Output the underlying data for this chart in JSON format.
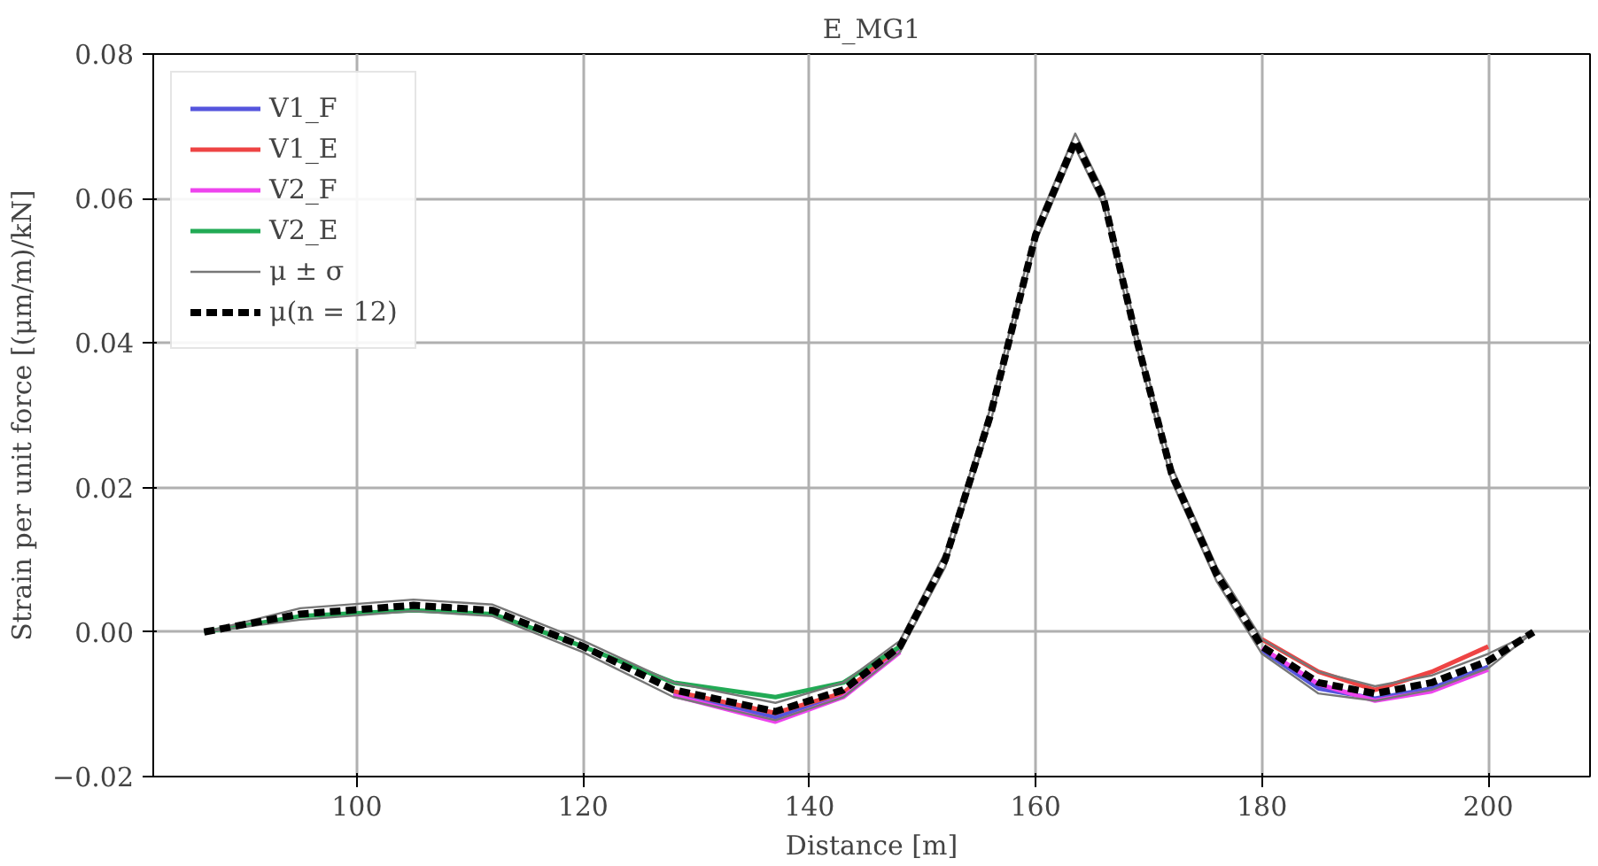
{
  "chart_data": {
    "type": "line",
    "title": "E_MG1",
    "xlabel": "Distance [m]",
    "ylabel": "Strain per unit force [(μm/m)/kN]",
    "x": [
      86.5,
      95,
      105,
      112,
      120,
      128,
      137,
      143,
      148,
      152,
      156,
      160,
      163.5,
      166,
      169,
      172,
      176,
      180,
      185,
      190,
      195,
      200,
      204
    ],
    "series": [
      {
        "name": "V1_F",
        "color": "#5555dd",
        "values": [
          null,
          null,
          null,
          null,
          null,
          -0.0085,
          -0.0118,
          -0.0088,
          -0.0025,
          null,
          null,
          null,
          null,
          null,
          null,
          null,
          null,
          -0.0025,
          -0.0078,
          -0.0092,
          -0.0078,
          -0.0048,
          null
        ]
      },
      {
        "name": "V1_E",
        "color": "#ee4444",
        "values": [
          null,
          null,
          null,
          null,
          null,
          -0.0082,
          -0.0112,
          -0.0084,
          -0.002,
          null,
          null,
          null,
          null,
          null,
          null,
          null,
          null,
          -0.001,
          -0.0055,
          -0.008,
          -0.0055,
          -0.002,
          null
        ]
      },
      {
        "name": "V2_F",
        "color": "#ee44ee",
        "values": [
          null,
          null,
          null,
          null,
          null,
          -0.0088,
          -0.0124,
          -0.009,
          -0.0028,
          null,
          null,
          null,
          null,
          null,
          null,
          null,
          null,
          -0.0022,
          -0.0072,
          -0.0095,
          -0.0082,
          -0.0052,
          null
        ]
      },
      {
        "name": "V2_E",
        "color": "#22aa55",
        "values": [
          0,
          0.0022,
          0.003,
          0.0025,
          -0.002,
          -0.007,
          -0.009,
          -0.007,
          -0.002,
          null,
          null,
          null,
          null,
          null,
          null,
          null,
          null,
          null,
          null,
          null,
          null,
          null,
          null
        ]
      },
      {
        "name": "μ ± σ",
        "color": "#777777",
        "values": [
          0,
          0.0033,
          0.0045,
          0.0038,
          -0.0012,
          -0.007,
          -0.0098,
          -0.007,
          -0.0012,
          0.011,
          0.031,
          0.056,
          0.069,
          0.061,
          0.041,
          0.023,
          0.009,
          -0.001,
          -0.0055,
          -0.0075,
          -0.006,
          -0.003,
          0
        ]
      },
      {
        "color": "#777777",
        "values": [
          0,
          0.0017,
          0.0029,
          0.0022,
          -0.0028,
          -0.009,
          -0.0122,
          -0.009,
          -0.0028,
          0.009,
          0.029,
          0.054,
          0.067,
          0.059,
          0.039,
          0.021,
          0.007,
          -0.003,
          -0.0085,
          -0.0095,
          -0.008,
          -0.005,
          0
        ]
      },
      {
        "name": "μ(n = 12)",
        "color": "#000000",
        "line_style": "dashed",
        "values": [
          0,
          0.0025,
          0.0037,
          0.003,
          -0.002,
          -0.008,
          -0.011,
          -0.008,
          -0.002,
          0.01,
          0.03,
          0.055,
          0.068,
          0.06,
          0.04,
          0.022,
          0.008,
          -0.002,
          -0.007,
          -0.0085,
          -0.007,
          -0.004,
          0
        ]
      }
    ],
    "xlim": [
      82,
      209
    ],
    "xticks": [
      100,
      120,
      140,
      160,
      180,
      200
    ],
    "ylim": [
      -0.02,
      0.08
    ],
    "yticks": [
      {
        "value": -0.02,
        "label": "−0.02"
      },
      {
        "value": 0,
        "label": "0.00"
      },
      {
        "value": 0.02,
        "label": "0.02"
      },
      {
        "value": 0.04,
        "label": "0.04"
      },
      {
        "value": 0.06,
        "label": "0.06"
      },
      {
        "value": 0.08,
        "label": "0.08"
      }
    ],
    "grid": true,
    "legend": "top left",
    "line_style": "solid"
  }
}
